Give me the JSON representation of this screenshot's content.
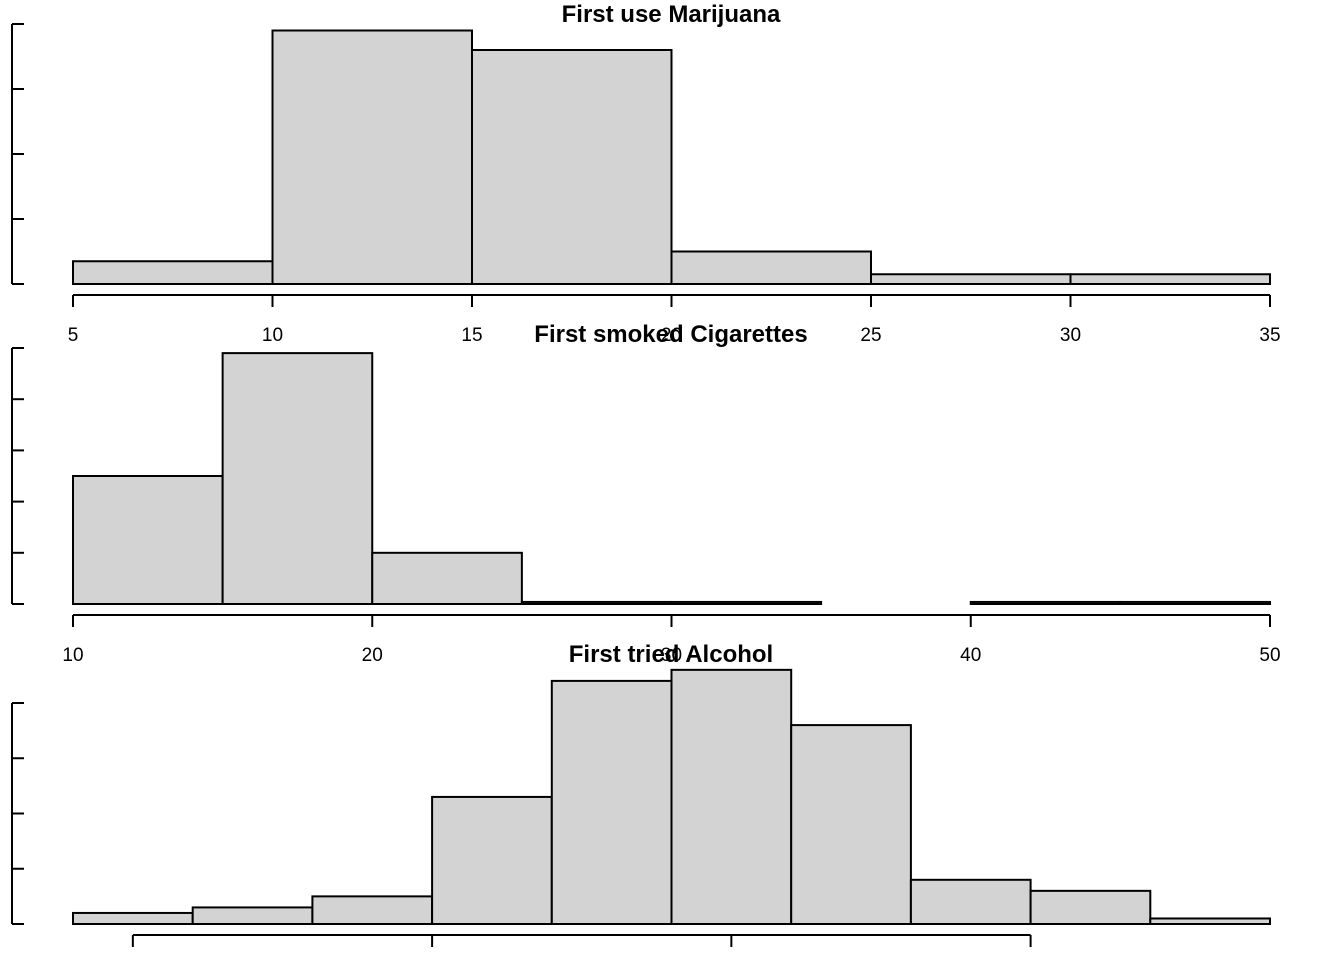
{
  "colors": {
    "bar_fill": "#d3d3d3",
    "bar_stroke": "#000000",
    "background": "#ffffff"
  },
  "chart_data": [
    {
      "type": "bar",
      "title": "First use Marijuana",
      "xlabel": "",
      "ylabel": "",
      "bins": [
        [
          5,
          10
        ],
        [
          10,
          15
        ],
        [
          15,
          20
        ],
        [
          20,
          25
        ],
        [
          25,
          30
        ],
        [
          30,
          35
        ]
      ],
      "values": [
        7,
        78,
        72,
        10,
        3,
        3
      ],
      "xlim": [
        5,
        35
      ],
      "ylim": [
        0,
        80
      ],
      "x_ticks": [
        5,
        10,
        15,
        20,
        25,
        30,
        35
      ],
      "x_tick_labels": [
        "5",
        "10",
        "15",
        "20",
        "25",
        "30",
        "35"
      ],
      "y_ticks": [
        0,
        20,
        40,
        60,
        80
      ],
      "y_tick_labels": [],
      "grid": false,
      "legend": "none"
    },
    {
      "type": "bar",
      "title": "First smoked Cigarettes",
      "xlabel": "",
      "ylabel": "",
      "bins": [
        [
          10,
          15
        ],
        [
          15,
          20
        ],
        [
          20,
          25
        ],
        [
          25,
          30
        ],
        [
          30,
          35
        ],
        [
          35,
          40
        ],
        [
          40,
          45
        ],
        [
          45,
          50
        ]
      ],
      "values": [
        25,
        49,
        10,
        0.4,
        0.4,
        0,
        0.4,
        0.4
      ],
      "xlim": [
        10,
        50
      ],
      "ylim": [
        0,
        50
      ],
      "x_ticks": [
        10,
        20,
        30,
        40,
        50
      ],
      "x_tick_labels": [
        "10",
        "20",
        "30",
        "40",
        "50"
      ],
      "y_ticks": [
        0,
        10,
        20,
        30,
        40,
        50
      ],
      "y_tick_labels": [],
      "grid": false,
      "legend": "none"
    },
    {
      "type": "bar",
      "title": "First tried Alcohol",
      "xlabel": "",
      "ylabel": "",
      "bins": [
        [
          6,
          8
        ],
        [
          8,
          10
        ],
        [
          10,
          12
        ],
        [
          12,
          14
        ],
        [
          14,
          16
        ],
        [
          16,
          18
        ],
        [
          18,
          20
        ],
        [
          20,
          22
        ],
        [
          22,
          24
        ],
        [
          24,
          26
        ]
      ],
      "values": [
        2,
        3,
        5,
        23,
        44,
        46,
        36,
        8,
        6,
        1
      ],
      "xlim": [
        6,
        26
      ],
      "ylim": [
        0,
        40
      ],
      "x_ticks": [
        7,
        12,
        17,
        22
      ],
      "x_tick_labels": [],
      "y_ticks": [
        0,
        10,
        20,
        30,
        40
      ],
      "y_tick_labels": [],
      "grid": false,
      "legend": "none"
    }
  ]
}
